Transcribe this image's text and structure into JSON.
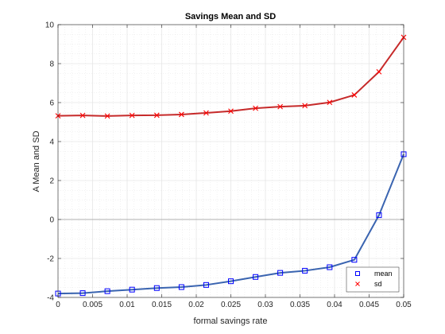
{
  "chart_data": {
    "type": "line",
    "title": "Savings Mean and SD",
    "xlabel": "formal savings rate",
    "ylabel": "A Mean and SD",
    "xlim": [
      0,
      0.05
    ],
    "ylim": [
      -4,
      10
    ],
    "x_ticks": [
      "0",
      "0.005",
      "0.01",
      "0.015",
      "0.02",
      "0.025",
      "0.03",
      "0.035",
      "0.04",
      "0.045",
      "0.05"
    ],
    "y_ticks": [
      "-4",
      "-2",
      "0",
      "2",
      "4",
      "6",
      "8",
      "10"
    ],
    "x_tick_values": [
      0,
      0.005,
      0.01,
      0.015,
      0.02,
      0.025,
      0.03,
      0.035,
      0.04,
      0.045,
      0.05
    ],
    "y_tick_values": [
      -4,
      -2,
      0,
      2,
      4,
      6,
      8,
      10
    ],
    "grid": true,
    "minor_grid": true,
    "zero_line": true,
    "legend_position": "bottom-right",
    "x": [
      0,
      0.00357,
      0.00714,
      0.01071,
      0.01429,
      0.01786,
      0.02143,
      0.025,
      0.02857,
      0.03214,
      0.03571,
      0.03929,
      0.04286,
      0.04643,
      0.05
    ],
    "series": [
      {
        "name": "mean",
        "marker": "square",
        "color": "#0000ff",
        "line_color": "#3a64b0",
        "values": [
          -3.8,
          -3.78,
          -3.68,
          -3.6,
          -3.52,
          -3.47,
          -3.36,
          -3.17,
          -2.95,
          -2.74,
          -2.63,
          -2.45,
          -2.07,
          0.22,
          3.35
        ]
      },
      {
        "name": "sd",
        "marker": "x",
        "color": "#ff0000",
        "line_color": "#c62a2a",
        "values": [
          5.32,
          5.34,
          5.31,
          5.34,
          5.35,
          5.39,
          5.47,
          5.56,
          5.71,
          5.79,
          5.84,
          6.01,
          6.39,
          7.58,
          9.35
        ]
      }
    ]
  }
}
